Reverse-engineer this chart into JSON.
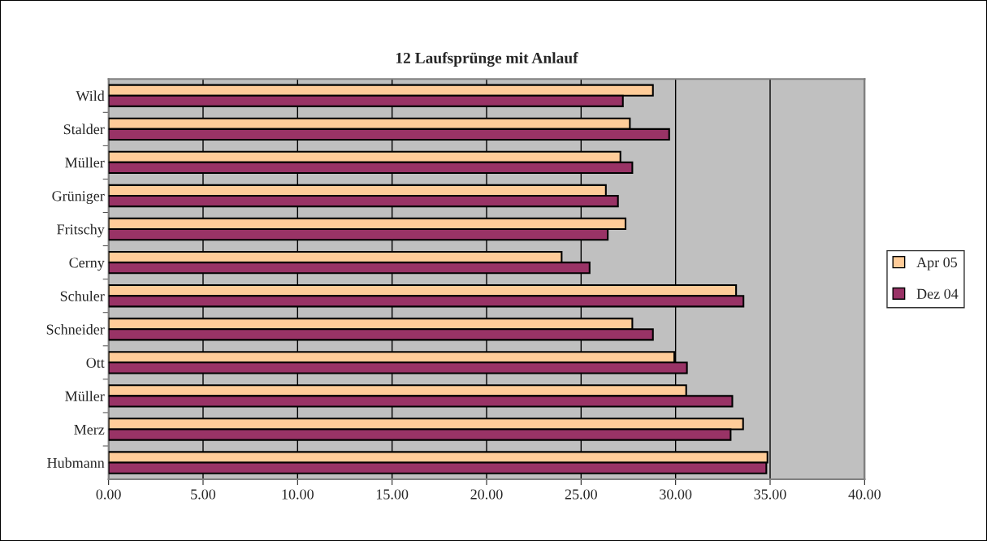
{
  "chart_data": {
    "type": "bar",
    "orientation": "horizontal",
    "title": "12 Laufsprünge mit Anlauf",
    "categories": [
      "Wild",
      "Stalder",
      "Müller",
      "Grüniger",
      "Fritschy",
      "Cerny",
      "Schuler",
      "Schneider",
      "Ott",
      "Müller",
      "Merz",
      "Hubmann"
    ],
    "series": [
      {
        "name": "Apr 05",
        "color": "#ffcc99",
        "values": [
          28.8,
          27.58,
          27.08,
          26.31,
          27.35,
          23.97,
          33.2,
          27.71,
          29.93,
          30.56,
          33.57,
          34.86
        ]
      },
      {
        "name": "Dez 04",
        "color": "#993366",
        "values": [
          27.21,
          29.66,
          27.71,
          26.95,
          26.41,
          25.45,
          33.59,
          28.8,
          30.6,
          33.0,
          32.91,
          34.8
        ]
      }
    ],
    "xlim": [
      0,
      40
    ],
    "xticks": [
      {
        "value": 0,
        "label": "0.00"
      },
      {
        "value": 5,
        "label": "5.00"
      },
      {
        "value": 10,
        "label": "10.00"
      },
      {
        "value": 15,
        "label": "15.00"
      },
      {
        "value": 20,
        "label": "20.00"
      },
      {
        "value": 25,
        "label": "25.00"
      },
      {
        "value": 30,
        "label": "30.00"
      },
      {
        "value": 35,
        "label": "35.00"
      },
      {
        "value": 40,
        "label": "40.00"
      }
    ],
    "grid": "x",
    "legend": "right"
  }
}
